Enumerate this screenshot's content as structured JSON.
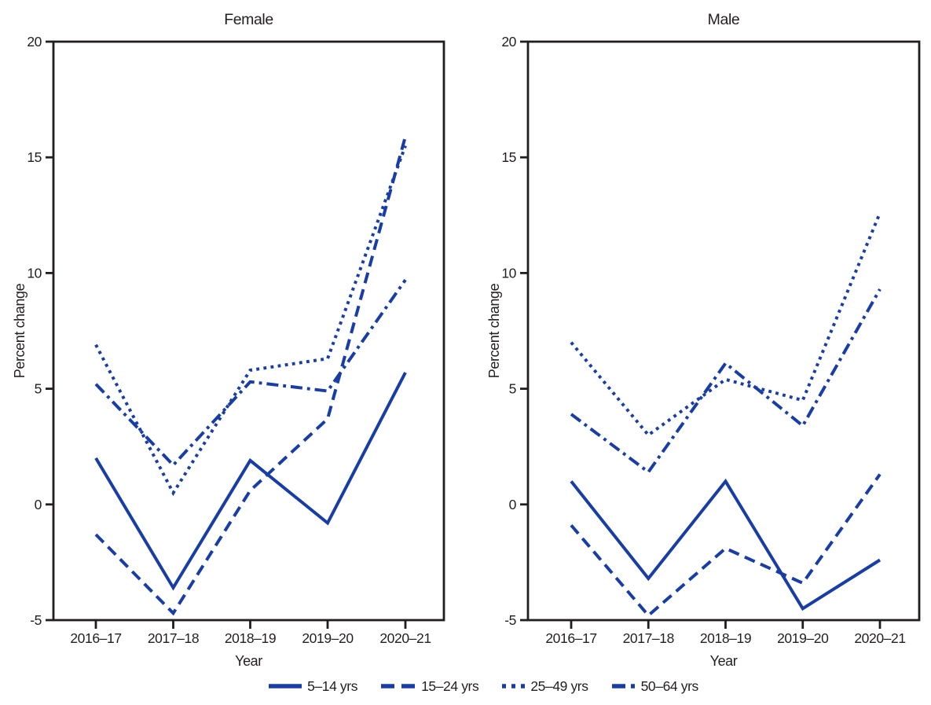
{
  "figure": {
    "background": "#ffffff",
    "line_color": "#183EA6",
    "axis_color": "#221e1f",
    "text_color": "#231f20"
  },
  "legend": {
    "position": "bottom-center",
    "items": [
      {
        "label": "5–14 yrs",
        "style": "solid"
      },
      {
        "label": "15–24 yrs",
        "style": "dashed"
      },
      {
        "label": "25–49 yrs",
        "style": "dotted"
      },
      {
        "label": "50–64 yrs",
        "style": "dashdot"
      }
    ]
  },
  "chart_data": [
    {
      "type": "line",
      "title": "Female",
      "xlabel": "Year",
      "ylabel": "Percent change",
      "categories": [
        "2016–17",
        "2017–18",
        "2018–19",
        "2019–20",
        "2020–21"
      ],
      "ylim": [
        -5,
        20
      ],
      "yticks": [
        20,
        15,
        10,
        5,
        0,
        -5
      ],
      "grid": false,
      "series": [
        {
          "name": "5–14 yrs",
          "style": "solid",
          "values": [
            2.0,
            -3.6,
            1.9,
            -0.8,
            5.7
          ]
        },
        {
          "name": "15–24 yrs",
          "style": "dashed",
          "values": [
            -1.3,
            -4.7,
            0.6,
            3.7,
            15.9
          ]
        },
        {
          "name": "25–49 yrs",
          "style": "dotted",
          "values": [
            6.9,
            0.5,
            5.8,
            6.3,
            15.5
          ]
        },
        {
          "name": "50–64 yrs",
          "style": "dashdot",
          "values": [
            5.2,
            1.7,
            5.3,
            4.9,
            9.7
          ]
        }
      ]
    },
    {
      "type": "line",
      "title": "Male",
      "xlabel": "Year",
      "ylabel": "Percent change",
      "categories": [
        "2016–17",
        "2017–18",
        "2018–19",
        "2019–20",
        "2020–21"
      ],
      "ylim": [
        -5,
        20
      ],
      "yticks": [
        20,
        15,
        10,
        5,
        0,
        -5
      ],
      "grid": false,
      "series": [
        {
          "name": "5–14 yrs",
          "style": "solid",
          "values": [
            1.0,
            -3.2,
            1.0,
            -4.5,
            -2.4
          ]
        },
        {
          "name": "15–24 yrs",
          "style": "dashed",
          "values": [
            -0.9,
            -4.8,
            -1.9,
            -3.4,
            1.3
          ]
        },
        {
          "name": "25–49 yrs",
          "style": "dotted",
          "values": [
            7.0,
            3.0,
            5.4,
            4.5,
            12.6
          ]
        },
        {
          "name": "50–64 yrs",
          "style": "dashdot",
          "values": [
            3.9,
            1.4,
            6.1,
            3.4,
            9.3
          ]
        }
      ]
    }
  ]
}
